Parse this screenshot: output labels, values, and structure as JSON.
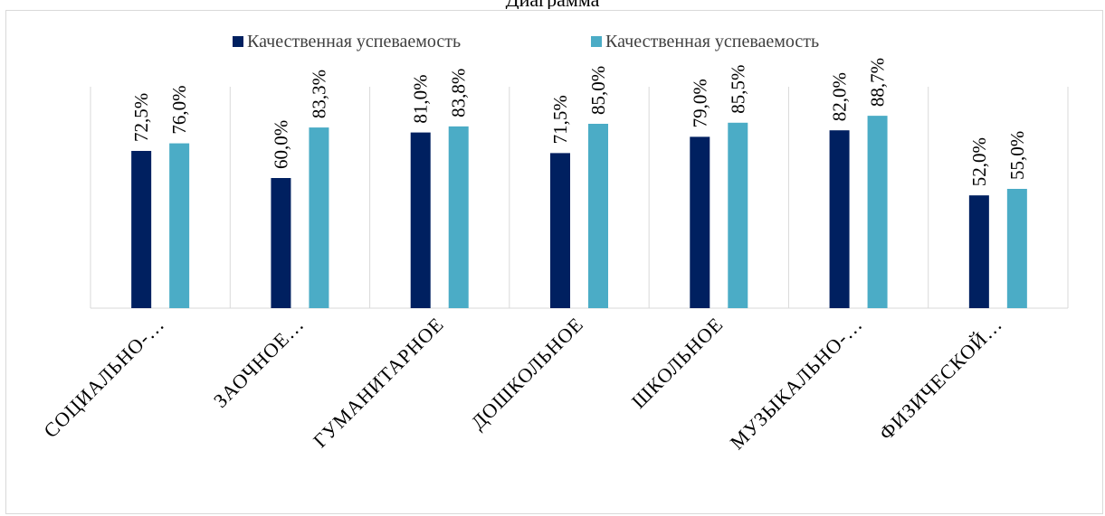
{
  "chart_data": {
    "type": "bar",
    "title": "Диаграмма",
    "categories": [
      "СОЦИАЛЬНО-…",
      "ЗАОЧНОЕ…",
      "ГУМАНИТАРНОЕ",
      "ДОШКОЛЬНОЕ",
      "ШКОЛЬНОЕ",
      "МУЗЫКАЛЬНО-…",
      "ФИЗИЧЕСКОЙ…"
    ],
    "series": [
      {
        "name": "Качественная успеваемость",
        "color": "#002060",
        "values": [
          72.5,
          60.0,
          81.0,
          71.5,
          79.0,
          82.0,
          52.0
        ],
        "labels": [
          "72,5%",
          "60,0%",
          "81,0%",
          "71,5%",
          "79,0%",
          "82,0%",
          "52,0%"
        ]
      },
      {
        "name": "Качественная успеваемость",
        "color": "#4bacc6",
        "values": [
          76.0,
          83.3,
          83.8,
          85.0,
          85.5,
          88.7,
          55.0
        ],
        "labels": [
          "76,0%",
          "83,3%",
          "83,8%",
          "85,0%",
          "85,5%",
          "88,7%",
          "55,0%"
        ]
      }
    ],
    "ylim": [
      0,
      100
    ],
    "grid": "vertical category separators",
    "legend": "top-center",
    "xlabel": "",
    "ylabel": ""
  }
}
